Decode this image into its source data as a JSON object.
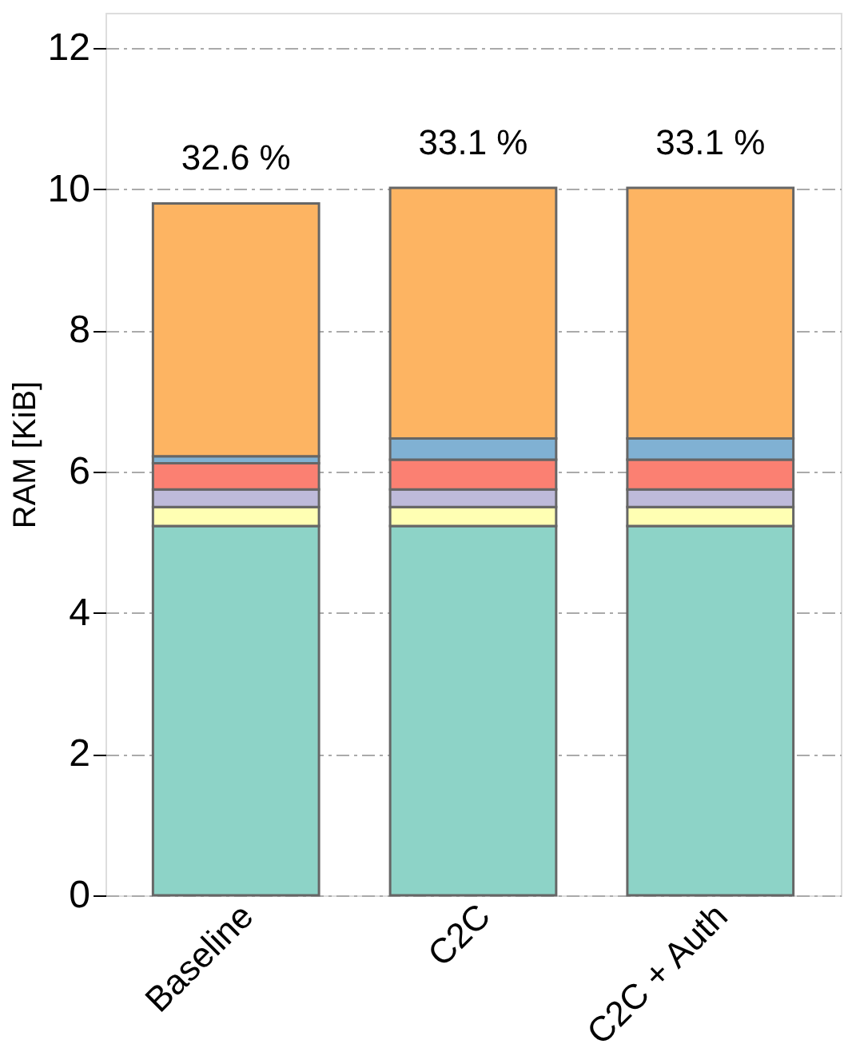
{
  "chart_data": {
    "type": "bar",
    "stacked": true,
    "ylabel": "RAM [KiB]",
    "categories": [
      "Baseline",
      "C2C",
      "C2C + Auth"
    ],
    "series": [
      {
        "color": "#8dd3c7",
        "values": [
          5.23,
          5.23,
          5.23
        ]
      },
      {
        "color": "#ffffb3",
        "values": [
          0.27,
          0.27,
          0.27
        ]
      },
      {
        "color": "#bebada",
        "values": [
          0.25,
          0.25,
          0.25
        ]
      },
      {
        "color": "#fb8072",
        "values": [
          0.37,
          0.42,
          0.42
        ]
      },
      {
        "color": "#80b1d3",
        "values": [
          0.1,
          0.3,
          0.3
        ]
      },
      {
        "color": "#fdb462",
        "values": [
          3.58,
          3.55,
          3.55
        ]
      }
    ],
    "ylim": [
      0,
      12.5
    ],
    "yticks": [
      0,
      2,
      4,
      6,
      8,
      10,
      12
    ],
    "grid": "y",
    "annotations": [
      {
        "text": "32.6 %",
        "x": "Baseline",
        "y": 9.8
      },
      {
        "text": "33.1 %",
        "x": "C2C",
        "y": 10.02
      },
      {
        "text": "33.1 %",
        "x": "C2C + Auth",
        "y": 10.02
      }
    ]
  }
}
